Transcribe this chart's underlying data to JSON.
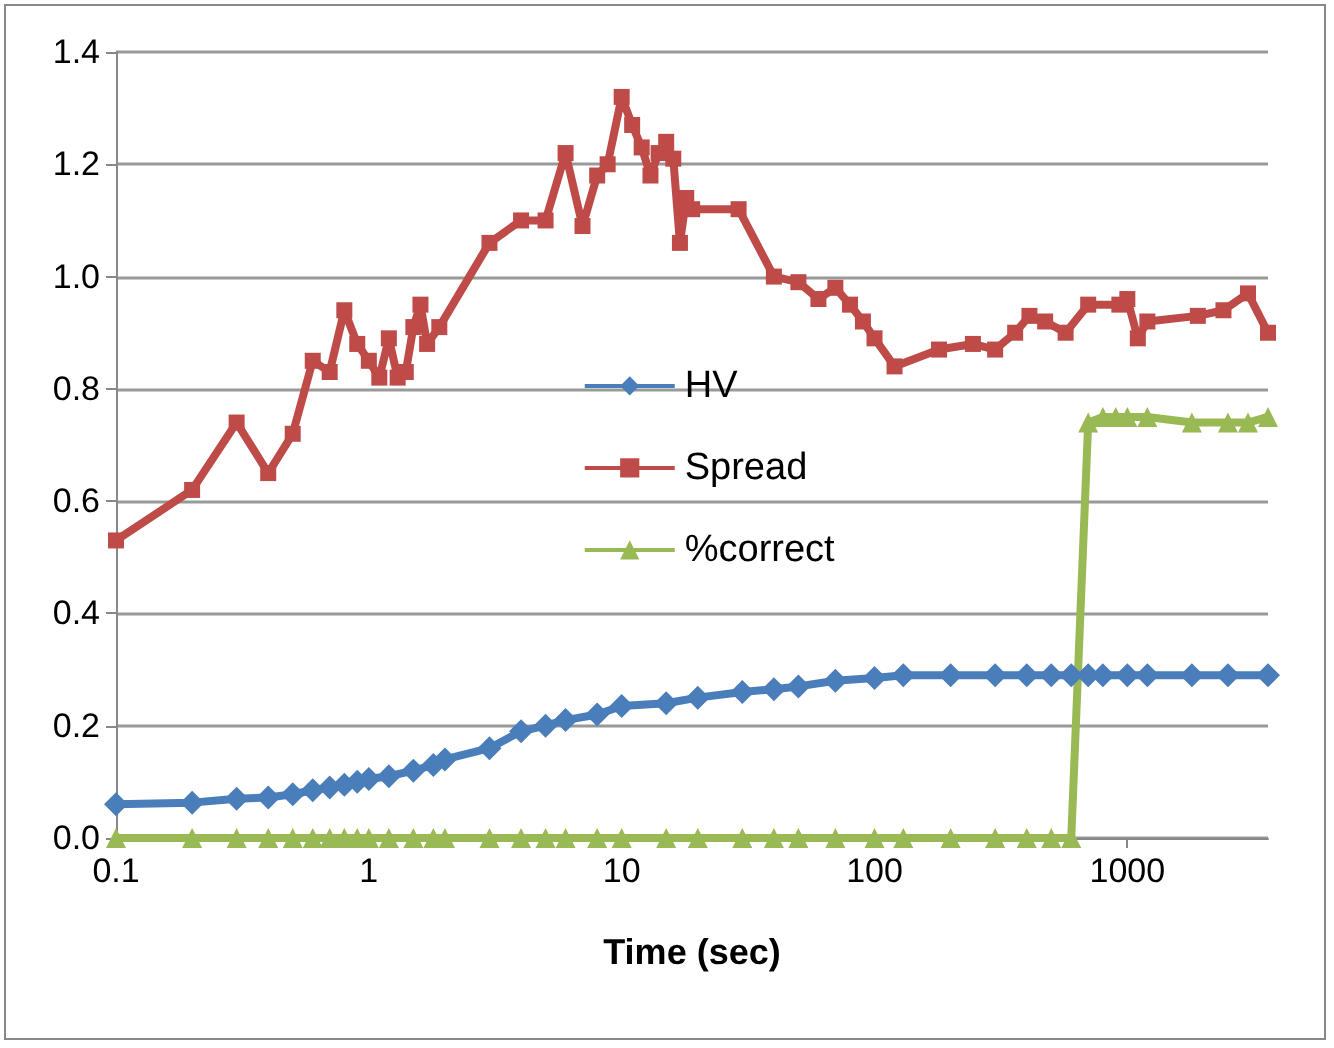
{
  "chart_data": {
    "type": "line",
    "xlabel": "Time (sec)",
    "log": "x",
    "grid": "y",
    "legend": "center",
    "line_style": "solid",
    "xlim": [
      0.1,
      3600
    ],
    "xticks": [
      0.1,
      1,
      10,
      100,
      1000
    ],
    "ylim": [
      0,
      1.4
    ],
    "yticks": [
      {
        "value": 0,
        "label": "0.0"
      },
      {
        "value": 0.2,
        "label": "0.2"
      },
      {
        "value": 0.4,
        "label": "0.4"
      },
      {
        "value": 0.6,
        "label": "0.6"
      },
      {
        "value": 0.8,
        "label": "0.8"
      },
      {
        "value": 1,
        "label": "1.0"
      },
      {
        "value": 1.2,
        "label": "1.2"
      },
      {
        "value": 1.4,
        "label": "1.4"
      }
    ],
    "series": [
      {
        "name": "HV",
        "color": "#4a7ebb",
        "marker": "diamond",
        "x": [
          0.1,
          0.2,
          0.3,
          0.4,
          0.5,
          0.6,
          0.7,
          0.8,
          0.9,
          1,
          1.2,
          1.5,
          1.8,
          2,
          3,
          4,
          5,
          6,
          8,
          10,
          15,
          20,
          30,
          40,
          50,
          70,
          100,
          130,
          200,
          300,
          400,
          500,
          600,
          700,
          800,
          1000,
          1200,
          1800,
          2500,
          3600
        ],
        "values": [
          0.06,
          0.063,
          0.07,
          0.072,
          0.078,
          0.085,
          0.09,
          0.095,
          0.1,
          0.105,
          0.11,
          0.12,
          0.13,
          0.14,
          0.16,
          0.19,
          0.2,
          0.21,
          0.22,
          0.235,
          0.24,
          0.25,
          0.26,
          0.265,
          0.27,
          0.28,
          0.285,
          0.29,
          0.29,
          0.29,
          0.29,
          0.29,
          0.29,
          0.29,
          0.29,
          0.29,
          0.29,
          0.29,
          0.29,
          0.29
        ]
      },
      {
        "name": "Spread",
        "color": "#be4b48",
        "marker": "square",
        "x": [
          0.1,
          0.2,
          0.3,
          0.4,
          0.5,
          0.6,
          0.7,
          0.8,
          0.9,
          1,
          1.1,
          1.2,
          1.3,
          1.4,
          1.5,
          1.6,
          1.7,
          1.9,
          3,
          4,
          5,
          6,
          7,
          8,
          8.8,
          10,
          11,
          12,
          13,
          14,
          15,
          16,
          17,
          18,
          19,
          29,
          40,
          50,
          60,
          70,
          80,
          90,
          100,
          120,
          180,
          245,
          300,
          360,
          410,
          473,
          570,
          700,
          930,
          1000,
          1100,
          1200,
          1900,
          2400,
          3000,
          3600
        ],
        "values": [
          0.53,
          0.62,
          0.74,
          0.65,
          0.72,
          0.85,
          0.83,
          0.94,
          0.88,
          0.85,
          0.82,
          0.89,
          0.82,
          0.83,
          0.91,
          0.95,
          0.88,
          0.91,
          1.06,
          1.1,
          1.1,
          1.22,
          1.09,
          1.18,
          1.2,
          1.32,
          1.27,
          1.23,
          1.18,
          1.22,
          1.24,
          1.21,
          1.06,
          1.14,
          1.12,
          1.12,
          1,
          0.99,
          0.96,
          0.98,
          0.95,
          0.92,
          0.89,
          0.84,
          0.87,
          0.88,
          0.87,
          0.9,
          0.93,
          0.92,
          0.9,
          0.95,
          0.95,
          0.96,
          0.89,
          0.92,
          0.93,
          0.94,
          0.97,
          0.9
        ]
      },
      {
        "name": "%correct",
        "color": "#98b954",
        "marker": "triangle",
        "x": [
          0.1,
          0.2,
          0.3,
          0.4,
          0.5,
          0.6,
          0.7,
          0.8,
          0.9,
          1,
          1.2,
          1.5,
          1.8,
          2,
          3,
          4,
          5,
          6,
          8,
          10,
          15,
          20,
          30,
          40,
          50,
          70,
          100,
          130,
          200,
          300,
          400,
          500,
          600,
          700,
          800,
          900,
          1000,
          1200,
          1800,
          2500,
          3000,
          3600
        ],
        "values": [
          0,
          0,
          0,
          0,
          0,
          0,
          0,
          0,
          0,
          0,
          0,
          0,
          0,
          0,
          0,
          0,
          0,
          0,
          0,
          0,
          0,
          0,
          0,
          0,
          0,
          0,
          0,
          0,
          0,
          0,
          0,
          0,
          0,
          0.74,
          0.75,
          0.75,
          0.75,
          0.75,
          0.74,
          0.74,
          0.74,
          0.75
        ]
      }
    ]
  }
}
